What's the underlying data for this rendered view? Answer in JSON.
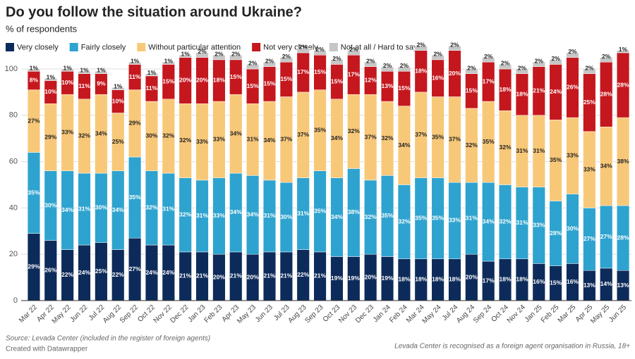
{
  "chart_data": {
    "type": "stacked_bar",
    "title": "Do you follow the situation around Ukraine?",
    "subtitle": "% of respondents",
    "source": "Source: Levada Center (included in the register of foreign agents)",
    "credit": "Created with Datawrapper",
    "note": "Levada Center is recognised as a foreign agent organisation in Russia, 18+",
    "categories": [
      "Mar 22",
      "Apr 22",
      "May 22",
      "Jun 22",
      "Jul 22",
      "Aug 22",
      "Sep 22",
      "Oct 22",
      "Nov 22",
      "Dec 22",
      "Jan 23",
      "Feb 23",
      "Apr 23",
      "May 23",
      "Jun 23",
      "Jul 23",
      "Aug 23",
      "Sep 23",
      "Oct 23",
      "Nov 23",
      "Dec 23",
      "Jan 24",
      "Feb 24",
      "Mar 24",
      "May 24",
      "Jul 24",
      "Aug 24",
      "Sep 24",
      "Oct 24",
      "Nov 24",
      "Jan 25",
      "Feb 25",
      "Mar 25",
      "Apr 25",
      "May 25",
      "Jun 25"
    ],
    "ylim": [
      0,
      100
    ],
    "yticks": [
      0,
      20,
      40,
      60,
      80,
      100
    ],
    "grid": true,
    "legend": "top",
    "series": [
      {
        "name": "Very closely",
        "color": "#0d2b5a",
        "values": [
          29,
          26,
          22,
          24,
          25,
          22,
          27,
          24,
          24,
          21,
          21,
          20,
          21,
          20,
          21,
          21,
          22,
          21,
          19,
          19,
          20,
          19,
          18,
          18,
          18,
          18,
          20,
          17,
          18,
          18,
          16,
          15,
          16,
          13,
          14,
          13
        ],
        "value_labels": [
          "29%",
          "26%",
          "22%",
          "24%",
          "25%",
          "22%",
          "27%",
          "24%",
          "24%",
          "21%",
          "21%",
          "20%",
          "21%",
          "20%",
          "21%",
          "21%",
          "22%",
          "21%",
          "19%",
          "19%",
          "20%",
          "19%",
          "18%",
          "18%",
          "18%",
          "18%",
          "20%",
          "17%",
          "18%",
          "18%",
          "16%",
          "15%",
          "16%",
          "13%",
          "14%",
          "13%"
        ]
      },
      {
        "name": "Fairly closely",
        "color": "#2ea3cf",
        "values": [
          35,
          30,
          34,
          31,
          30,
          34,
          35,
          32,
          31,
          32,
          31,
          33,
          34,
          34,
          31,
          30,
          31,
          35,
          34,
          38,
          32,
          35,
          32,
          35,
          35,
          33,
          31,
          34,
          32,
          31,
          33,
          28,
          30,
          27,
          27,
          28
        ],
        "value_labels": [
          "35%",
          "30%",
          "34%",
          "31%",
          "30%",
          "34%",
          "35%",
          "32%",
          "31%",
          "32%",
          "31%",
          "33%",
          "34%",
          "34%",
          "31%",
          "30%",
          "31%",
          "35%",
          "34%",
          "38%",
          "32%",
          "35%",
          "32%",
          "35%",
          "35%",
          "33%",
          "31%",
          "34%",
          "32%",
          "31%",
          "33%",
          "28%",
          "30%",
          "27%",
          "27%",
          "28%"
        ]
      },
      {
        "name": "Without particular attention",
        "color": "#f8c879",
        "values": [
          27,
          29,
          33,
          32,
          34,
          25,
          29,
          30,
          32,
          32,
          33,
          33,
          34,
          31,
          34,
          37,
          37,
          35,
          34,
          32,
          37,
          32,
          34,
          37,
          35,
          37,
          32,
          35,
          32,
          31,
          31,
          35,
          33,
          33,
          34,
          38
        ],
        "value_labels": [
          "27%",
          "29%",
          "33%",
          "32%",
          "34%",
          "25%",
          "29%",
          "30%",
          "32%",
          "32%",
          "33%",
          "33%",
          "34%",
          "31%",
          "34%",
          "37%",
          "37%",
          "35%",
          "34%",
          "32%",
          "37%",
          "32%",
          "34%",
          "37%",
          "35%",
          "37%",
          "32%",
          "35%",
          "32%",
          "31%",
          "31%",
          "35%",
          "33%",
          "33%",
          "34%",
          "38%"
        ]
      },
      {
        "name": "Not very closely",
        "color": "#c5171e",
        "values": [
          8,
          10,
          10,
          11,
          9,
          10,
          11,
          11,
          15,
          20,
          20,
          18,
          15,
          15,
          15,
          15,
          17,
          15,
          15,
          17,
          12,
          13,
          15,
          18,
          16,
          20,
          15,
          17,
          18,
          18,
          21,
          24,
          26,
          25,
          28,
          28
        ],
        "value_labels": [
          "8%",
          "10%",
          "10%",
          "11%",
          "9%",
          "10%",
          "11%",
          "11%",
          "15%",
          "20%",
          "20%",
          "18%",
          "15%",
          "15%",
          "15%",
          "15%",
          "17%",
          "15%",
          "15%",
          "17%",
          "12%",
          "13%",
          "15%",
          "18%",
          "16%",
          "20%",
          "15%",
          "17%",
          "18%",
          "18%",
          "21%",
          "24%",
          "26%",
          "25%",
          "28%",
          "28%"
        ]
      },
      {
        "name": "Not at all / Hard to say",
        "color": "#c6c6c6",
        "values": [
          1,
          1,
          1,
          1,
          1,
          1,
          1,
          1,
          1,
          1,
          2,
          2,
          2,
          2,
          2,
          2,
          2,
          2,
          2,
          2,
          2,
          2,
          2,
          2,
          2,
          2,
          2,
          2,
          2,
          2,
          2,
          2,
          2,
          2,
          2,
          1
        ],
        "value_labels": [
          "1%",
          "1%",
          "1%",
          "1%",
          "1%",
          "1%",
          "1%",
          "1%",
          "1%",
          "1%",
          "2%",
          "2%",
          "2%",
          "2%",
          "2%",
          "2%",
          "2%",
          "2%",
          "2%",
          "2%",
          "2%",
          "2%",
          "2%",
          "2%",
          "2%",
          "2%",
          "2%",
          "2%",
          "2%",
          "2%",
          "2%",
          "2%",
          "2%",
          "2%",
          "2%",
          "1%"
        ]
      }
    ]
  }
}
